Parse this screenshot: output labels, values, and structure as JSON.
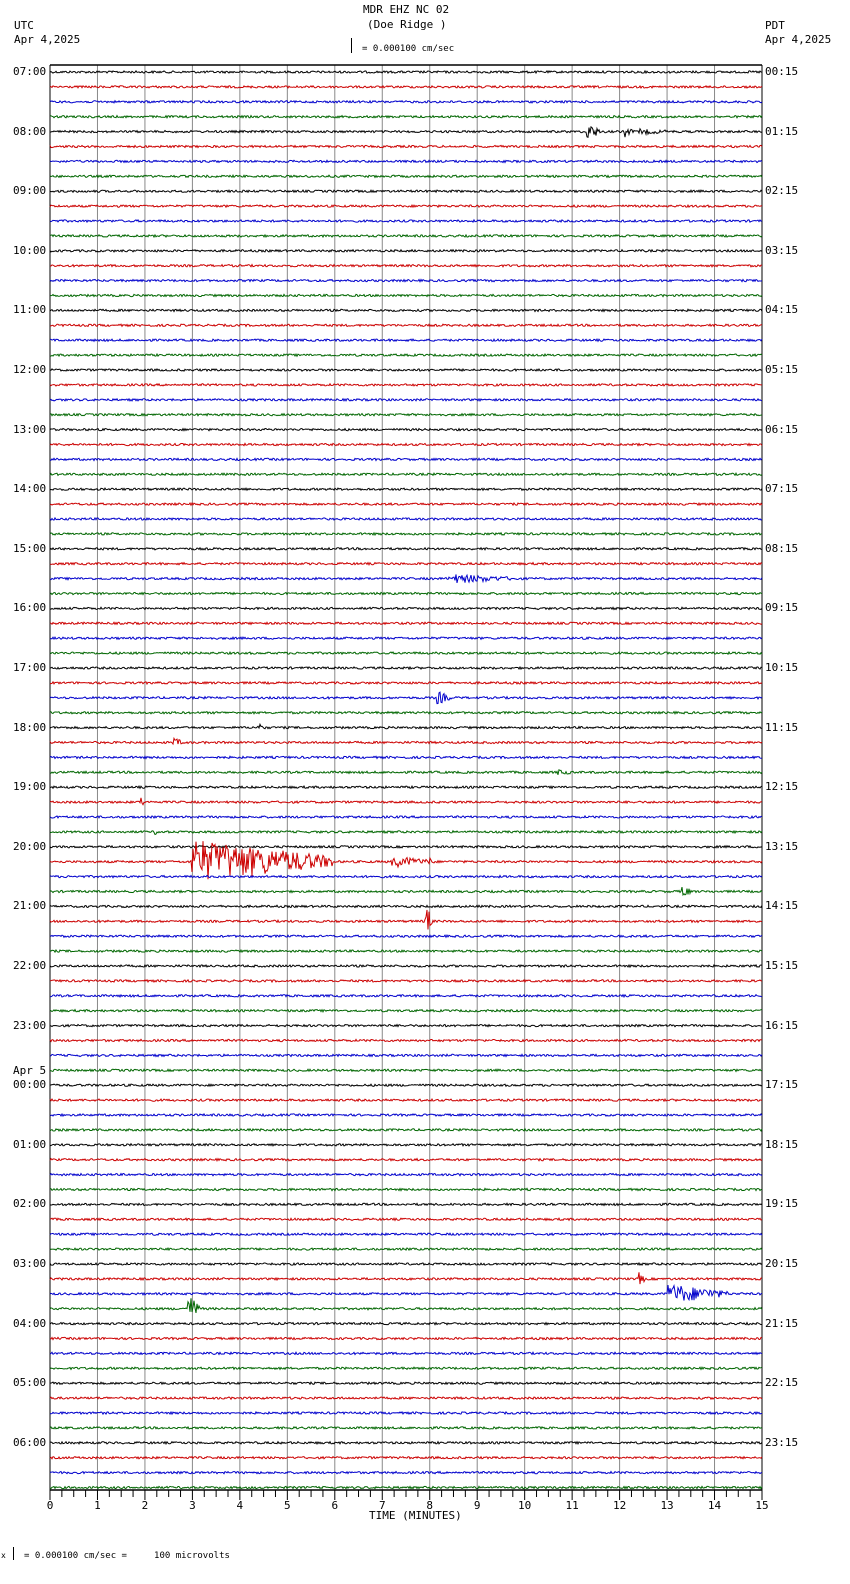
{
  "header": {
    "title": "MDR EHZ NC 02",
    "subtitle": "(Doe Ridge )",
    "left_tz": "UTC",
    "left_date": "Apr 4,2025",
    "right_tz": "PDT",
    "right_date": "Apr 4,2025",
    "scale_text": "= 0.000100 cm/sec"
  },
  "footer": {
    "scale_text": "= 0.000100 cm/sec =     100 microvolts",
    "mark": "x"
  },
  "chart_data": {
    "type": "line",
    "title": "MDR EHZ NC 02 (Doe Ridge )",
    "xlabel": "TIME (MINUTES)",
    "ylabel": "",
    "xlim": [
      0,
      15
    ],
    "x_ticks": [
      "0",
      "1",
      "2",
      "3",
      "4",
      "5",
      "6",
      "7",
      "8",
      "9",
      "10",
      "11",
      "12",
      "13",
      "14",
      "15"
    ],
    "traces_per_hour": 4,
    "trace_colors": [
      "#000000",
      "#cc0000",
      "#0000cc",
      "#006600"
    ],
    "grid_color": "#888888",
    "left_labels": [
      "07:00",
      "08:00",
      "09:00",
      "10:00",
      "11:00",
      "12:00",
      "13:00",
      "14:00",
      "15:00",
      "16:00",
      "17:00",
      "18:00",
      "19:00",
      "20:00",
      "21:00",
      "22:00",
      "23:00",
      "00:00",
      "01:00",
      "02:00",
      "03:00",
      "04:00",
      "05:00",
      "06:00"
    ],
    "date_change_label": "Apr 5",
    "date_change_index": 17,
    "right_labels": [
      "00:15",
      "01:15",
      "02:15",
      "03:15",
      "04:15",
      "05:15",
      "06:15",
      "07:15",
      "08:15",
      "09:15",
      "10:15",
      "11:15",
      "12:15",
      "13:15",
      "14:15",
      "15:15",
      "16:15",
      "17:15",
      "18:15",
      "19:15",
      "20:15",
      "21:15",
      "22:15",
      "23:15"
    ],
    "events": [
      {
        "trace": 4,
        "minute": 11.3,
        "duration": 0.3,
        "amp": 9
      },
      {
        "trace": 4,
        "minute": 12.1,
        "duration": 0.2,
        "amp": 6
      },
      {
        "trace": 4,
        "minute": 12.4,
        "duration": 0.9,
        "amp": 3
      },
      {
        "trace": 34,
        "minute": 8.4,
        "duration": 1.5,
        "amp": 5
      },
      {
        "trace": 42,
        "minute": 8.15,
        "duration": 0.3,
        "amp": 7
      },
      {
        "trace": 44,
        "minute": 4.35,
        "duration": 0.2,
        "amp": 5
      },
      {
        "trace": 45,
        "minute": 2.55,
        "duration": 0.3,
        "amp": 5
      },
      {
        "trace": 47,
        "minute": 10.7,
        "duration": 0.4,
        "amp": 3
      },
      {
        "trace": 49,
        "minute": 1.9,
        "duration": 0.1,
        "amp": 6
      },
      {
        "trace": 51,
        "minute": 2.2,
        "duration": 0.2,
        "amp": 3
      },
      {
        "trace": 53,
        "minute": 2.95,
        "duration": 3.0,
        "amp": 22
      },
      {
        "trace": 53,
        "minute": 7.2,
        "duration": 0.9,
        "amp": 6
      },
      {
        "trace": 53,
        "minute": 8.0,
        "duration": 0.05,
        "amp": 18
      },
      {
        "trace": 55,
        "minute": 13.3,
        "duration": 0.2,
        "amp": 8
      },
      {
        "trace": 57,
        "minute": 7.9,
        "duration": 0.15,
        "amp": 18
      },
      {
        "trace": 83,
        "minute": 2.9,
        "duration": 0.25,
        "amp": 15
      },
      {
        "trace": 81,
        "minute": 12.4,
        "duration": 0.15,
        "amp": 7
      },
      {
        "trace": 82,
        "minute": 13.0,
        "duration": 1.3,
        "amp": 10
      }
    ]
  }
}
